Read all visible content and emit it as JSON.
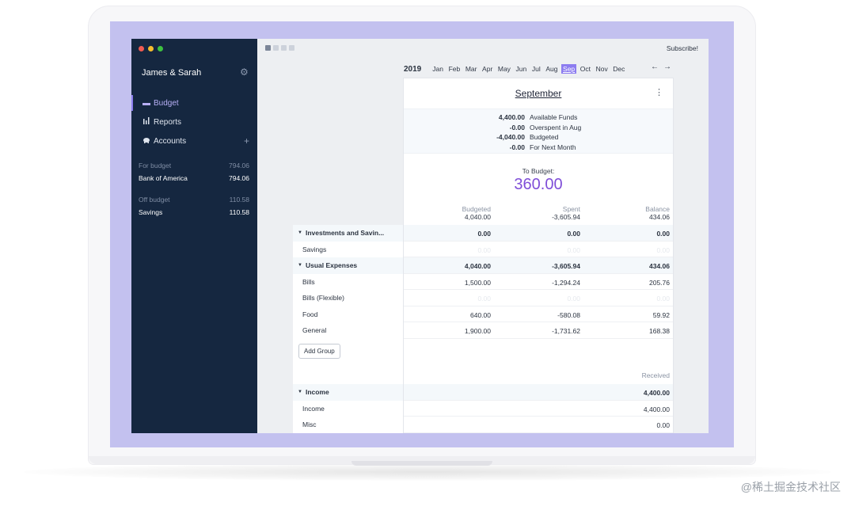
{
  "window": {
    "budget_name": "James & Sarah",
    "subscribe_label": "Subscribe!"
  },
  "sidebar": {
    "nav": [
      {
        "label": "Budget",
        "icon": "wallet-icon",
        "active": true
      },
      {
        "label": "Reports",
        "icon": "bar-chart-icon",
        "active": false
      },
      {
        "label": "Accounts",
        "icon": "piggy-bank-icon",
        "active": false
      }
    ],
    "for_budget": {
      "label": "For budget",
      "total": "794.06"
    },
    "for_budget_accounts": [
      {
        "name": "Bank of America",
        "balance": "794.06"
      }
    ],
    "off_budget": {
      "label": "Off budget",
      "total": "110.58"
    },
    "off_budget_accounts": [
      {
        "name": "Savings",
        "balance": "110.58"
      }
    ]
  },
  "months": {
    "year": "2019",
    "items": [
      "Jan",
      "Feb",
      "Mar",
      "Apr",
      "May",
      "Jun",
      "Jul",
      "Aug",
      "Sep",
      "Oct",
      "Nov",
      "Dec"
    ],
    "selected": "Sep",
    "prev_glyph": "←",
    "next_glyph": "→"
  },
  "card": {
    "title": "September",
    "menu_glyph": "⋮",
    "summary": [
      {
        "value": "4,400.00",
        "label": "Available Funds"
      },
      {
        "value": "-0.00",
        "label": "Overspent in Aug"
      },
      {
        "value": "-4,040.00",
        "label": "Budgeted"
      },
      {
        "value": "-0.00",
        "label": "For Next Month"
      }
    ],
    "to_budget_label": "To Budget:",
    "to_budget_value": "360.00",
    "columns": {
      "budgeted": {
        "label": "Budgeted",
        "total": "4,040.00"
      },
      "spent": {
        "label": "Spent",
        "total": "-3,605.94"
      },
      "balance": {
        "label": "Balance",
        "total": "434.06"
      }
    },
    "received_label": "Received"
  },
  "rows": [
    {
      "type": "group",
      "name": "Investments and Savin...",
      "budgeted": "0.00",
      "spent": "0.00",
      "balance": "0.00"
    },
    {
      "type": "item",
      "name": "Savings",
      "budgeted": "0.00",
      "spent": "0.00",
      "balance": "0.00",
      "faint": true
    },
    {
      "type": "group",
      "name": "Usual Expenses",
      "budgeted": "4,040.00",
      "spent": "-3,605.94",
      "balance": "434.06"
    },
    {
      "type": "item",
      "name": "Bills",
      "budgeted": "1,500.00",
      "spent": "-1,294.24",
      "balance": "205.76"
    },
    {
      "type": "item",
      "name": "Bills (Flexible)",
      "budgeted": "0.00",
      "spent": "0.00",
      "balance": "0.00",
      "faint": true
    },
    {
      "type": "item",
      "name": "Food",
      "budgeted": "640.00",
      "spent": "-580.08",
      "balance": "59.92"
    },
    {
      "type": "item",
      "name": "General",
      "budgeted": "1,900.00",
      "spent": "-1,731.62",
      "balance": "168.38"
    }
  ],
  "add_group_label": "Add Group",
  "income_rows": [
    {
      "type": "group",
      "name": "Income",
      "received": "4,400.00"
    },
    {
      "type": "item",
      "name": "Income",
      "received": "4,400.00"
    },
    {
      "type": "item",
      "name": "Misc",
      "received": "0.00"
    }
  ],
  "watermark": "@稀土掘金技术社区",
  "colors": {
    "accent": "#8c7cf0",
    "sidebar": "#152740",
    "to_budget": "#7f4ed8"
  }
}
